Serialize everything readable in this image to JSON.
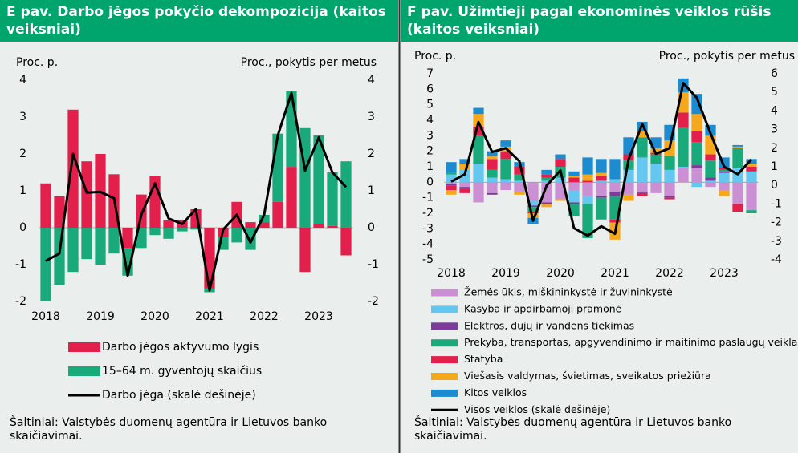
{
  "chart_data": [
    {
      "type": "bar",
      "stacked": true,
      "title": "E pav. Darbo jėgos pokyčio dekompozicija (kaitos veiksniai)",
      "ylabel": "Proc. p.",
      "y2label": "Proc., pokytis per metus",
      "categories": [
        "2018",
        null,
        null,
        null,
        "2019",
        null,
        null,
        null,
        "2020",
        null,
        null,
        null,
        "2021",
        null,
        null,
        null,
        "2022",
        null,
        null,
        null,
        "2023",
        null,
        null
      ],
      "ylim": [
        -2,
        4
      ],
      "yticks": [
        -2,
        -1,
        0,
        1,
        2,
        3,
        4
      ],
      "y2lim": [
        -2,
        4
      ],
      "y2ticks": [
        -2,
        -1,
        0,
        1,
        2,
        3,
        4
      ],
      "series": [
        {
          "name": "Darbo jėgos aktyvumo lygis",
          "color": "#e3204b",
          "values": [
            1.2,
            0.85,
            3.2,
            1.8,
            2.0,
            1.45,
            -0.55,
            0.9,
            1.4,
            0.2,
            0.2,
            0.5,
            -1.65,
            -0.25,
            0.7,
            0.15,
            0.15,
            0.7,
            1.65,
            -1.2,
            0.1,
            0.05,
            -0.75
          ]
        },
        {
          "name": "15–64 m. gyventojų skaičius",
          "color": "#1aa97a",
          "values": [
            -2.0,
            -1.55,
            -1.2,
            -0.85,
            -1.0,
            -0.7,
            -0.75,
            -0.55,
            -0.2,
            -0.3,
            -0.1,
            -0.05,
            -0.1,
            -0.35,
            -0.4,
            -0.6,
            0.2,
            1.85,
            2.05,
            2.7,
            2.4,
            1.45,
            1.8
          ]
        },
        {
          "name": "Darbo jėga (skalė dešinėje)",
          "type": "line",
          "axis": "y2",
          "color": "#000000",
          "values": [
            -0.9,
            -0.7,
            2.0,
            0.95,
            0.97,
            0.8,
            -1.3,
            0.35,
            1.2,
            0.25,
            0.1,
            0.5,
            -1.7,
            -0.05,
            0.35,
            -0.4,
            0.35,
            2.5,
            3.65,
            1.55,
            2.45,
            1.5,
            1.1
          ]
        }
      ],
      "source": "Šaltiniai: Valstybės duomenų agentūra ir Lietuvos banko skaičiavimai."
    },
    {
      "type": "bar",
      "stacked": true,
      "title": "F pav. Užimtieji pagal ekonominės veiklos rūšis (kaitos veiksniai)",
      "ylabel": "Proc. p.",
      "y2label": "Proc., pokytis per metus",
      "categories": [
        "2018",
        null,
        null,
        null,
        "2019",
        null,
        null,
        null,
        "2020",
        null,
        null,
        null,
        "2021",
        null,
        null,
        null,
        "2022",
        null,
        null,
        null,
        "2023",
        null,
        null
      ],
      "ylim": [
        -5,
        7
      ],
      "yticks": [
        -5,
        -4,
        -3,
        -2,
        -1,
        0,
        1,
        2,
        3,
        4,
        5,
        6,
        7
      ],
      "y2lim": [
        -4,
        6
      ],
      "y2ticks": [
        -4,
        -3,
        -2,
        -1,
        0,
        1,
        2,
        3,
        4,
        5,
        6
      ],
      "series": [
        {
          "name": "Žemės ūkis, miškininkystė ir žuvininkystė",
          "color": "#cb8fd3",
          "values": [
            -0.1,
            -0.3,
            -1.3,
            -0.7,
            -0.5,
            -0.6,
            -1.2,
            -1.3,
            -1.1,
            -0.5,
            -0.9,
            -0.9,
            -0.6,
            -0.8,
            -0.6,
            -0.7,
            -0.9,
            0.9,
            0.9,
            -0.3,
            -0.5,
            -1.4,
            -1.8
          ]
        },
        {
          "name": "Kasyba ir apdirbamoji pramonė",
          "color": "#63c7ef",
          "values": [
            0.5,
            0.8,
            1.2,
            0.3,
            0.2,
            0.1,
            -0.3,
            0.1,
            0.3,
            -0.8,
            -0.5,
            0.1,
            0.2,
            0.8,
            1.6,
            1.2,
            0.8,
            0.1,
            -0.3,
            0.1,
            0.6,
            0.9,
            0.7
          ]
        },
        {
          "name": "Elektros, dujų ir vandens tiekimas",
          "color": "#7b3c9c",
          "values": [
            -0.1,
            -0.1,
            0.0,
            -0.1,
            0.0,
            0.0,
            -0.1,
            -0.1,
            0.0,
            -0.1,
            0.0,
            -0.1,
            -0.3,
            0.0,
            -0.1,
            0.0,
            -0.1,
            0.0,
            0.2,
            0.2,
            0.1,
            0.0,
            0.0
          ]
        },
        {
          "name": "Prekyba, transportas, apgyvendinimo ir maitinimo paslaugų veikla",
          "color": "#1aa97a",
          "values": [
            0.1,
            0.0,
            1.8,
            0.5,
            1.3,
            0.4,
            -0.3,
            0.2,
            0.7,
            -0.8,
            -2.2,
            -1.4,
            -1.5,
            0.6,
            1.3,
            0.6,
            0.9,
            2.5,
            1.5,
            1.1,
            0.1,
            1.3,
            -0.2
          ]
        },
        {
          "name": "Statyba",
          "color": "#e3204b",
          "values": [
            -0.3,
            -0.3,
            0.6,
            0.7,
            0.5,
            0.5,
            -0.1,
            0.2,
            0.5,
            0.3,
            0.1,
            0.3,
            -0.2,
            0.4,
            -0.2,
            0.1,
            -0.1,
            1.0,
            0.7,
            0.4,
            0.1,
            -0.5,
            0.3
          ]
        },
        {
          "name": "Viešasis valdymas, švietimas, sveikatos priežiūra",
          "color": "#f6a81c",
          "values": [
            -0.3,
            0.4,
            0.8,
            0.2,
            0.3,
            -0.2,
            -0.3,
            -0.2,
            -0.1,
            0.1,
            0.4,
            0.2,
            -1.1,
            -0.4,
            0.4,
            0.3,
            1.0,
            1.3,
            1.1,
            1.2,
            -0.4,
            0.1,
            0.2
          ]
        },
        {
          "name": "Kitos veiklos",
          "color": "#1c8bd0",
          "values": [
            0.7,
            0.3,
            0.4,
            0.3,
            0.4,
            0.3,
            -0.4,
            0.3,
            0.3,
            0.3,
            1.1,
            0.9,
            1.3,
            1.1,
            0.6,
            0.7,
            1.0,
            0.9,
            1.3,
            0.7,
            0.7,
            0.1,
            0.3
          ]
        },
        {
          "name": "Visos veiklos (skalė dešinėje)",
          "type": "line",
          "axis": "y2",
          "color": "#000000",
          "values": [
            0.2,
            0.6,
            3.4,
            1.8,
            2.0,
            1.3,
            -1.9,
            0.0,
            0.8,
            -2.3,
            -2.7,
            -2.2,
            -2.6,
            1.4,
            3.3,
            1.7,
            2.0,
            5.5,
            4.7,
            2.8,
            1.0,
            0.6,
            1.4
          ]
        }
      ],
      "source": "Šaltiniai: Valstybės duomenų agentūra ir Lietuvos banko skaičiavimai."
    }
  ]
}
